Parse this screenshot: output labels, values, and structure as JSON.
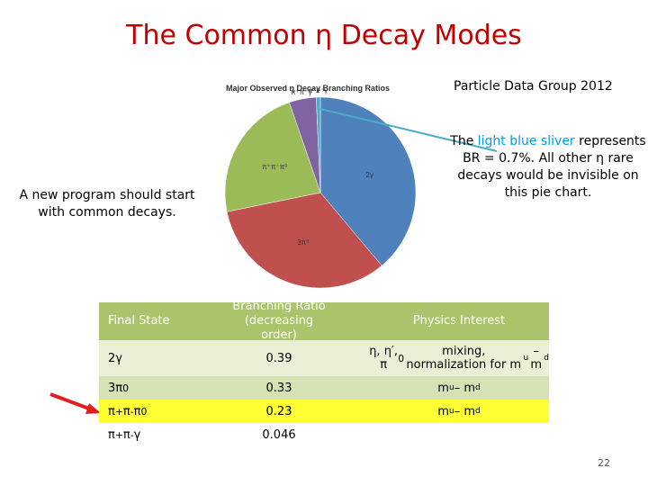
{
  "title": "The Common η Decay Modes",
  "source": "Particle Data Group 2012",
  "slide_number": "22",
  "note_right": {
    "pre": "The ",
    "highlight": "light blue sliver",
    "post": " represents BR = 0.7%. All other η rare decays would be invisible on this pie chart."
  },
  "note_left": "A new program should start with common decays.",
  "chart_data": {
    "type": "pie",
    "title": "Major Observed η Decay Branching Ratios",
    "labels": [
      "2γ",
      "3π⁰",
      "π⁺π⁻π⁰",
      "π⁺π⁻γ",
      "e⁺e⁻γ"
    ],
    "values": [
      0.39,
      0.33,
      0.23,
      0.046,
      0.007
    ],
    "colors": [
      "#4f81bd",
      "#c0504d",
      "#9bbb59",
      "#8064a2",
      "#4bacc6"
    ]
  },
  "table": {
    "headers": [
      "Final State",
      "Branching Ratio (decreasing order)",
      "Physics Interest"
    ],
    "rows": [
      {
        "state": "2γ",
        "br": "0.39",
        "interest_html": "η, η′, π<sup>0</sup> mixing, normalization for m<sub>u</sub> – m<sub>d</sub>"
      },
      {
        "state": "3π0",
        "br": "0.33",
        "interest_html": "m<sub>u</sub> – m<sub>d</sub>"
      },
      {
        "state": "π+π-π0",
        "br": "0.23",
        "interest_html": "m<sub>u</sub> – m<sub>d</sub>"
      },
      {
        "state": "π+π-γ",
        "br": "0.046",
        "interest_html": ""
      }
    ]
  },
  "colors": {
    "title": "#c00000",
    "highlight": "#00a0e0",
    "table_header": "#a9c46a",
    "row_highlight": "#ffff33",
    "arrow": "#e02020"
  }
}
